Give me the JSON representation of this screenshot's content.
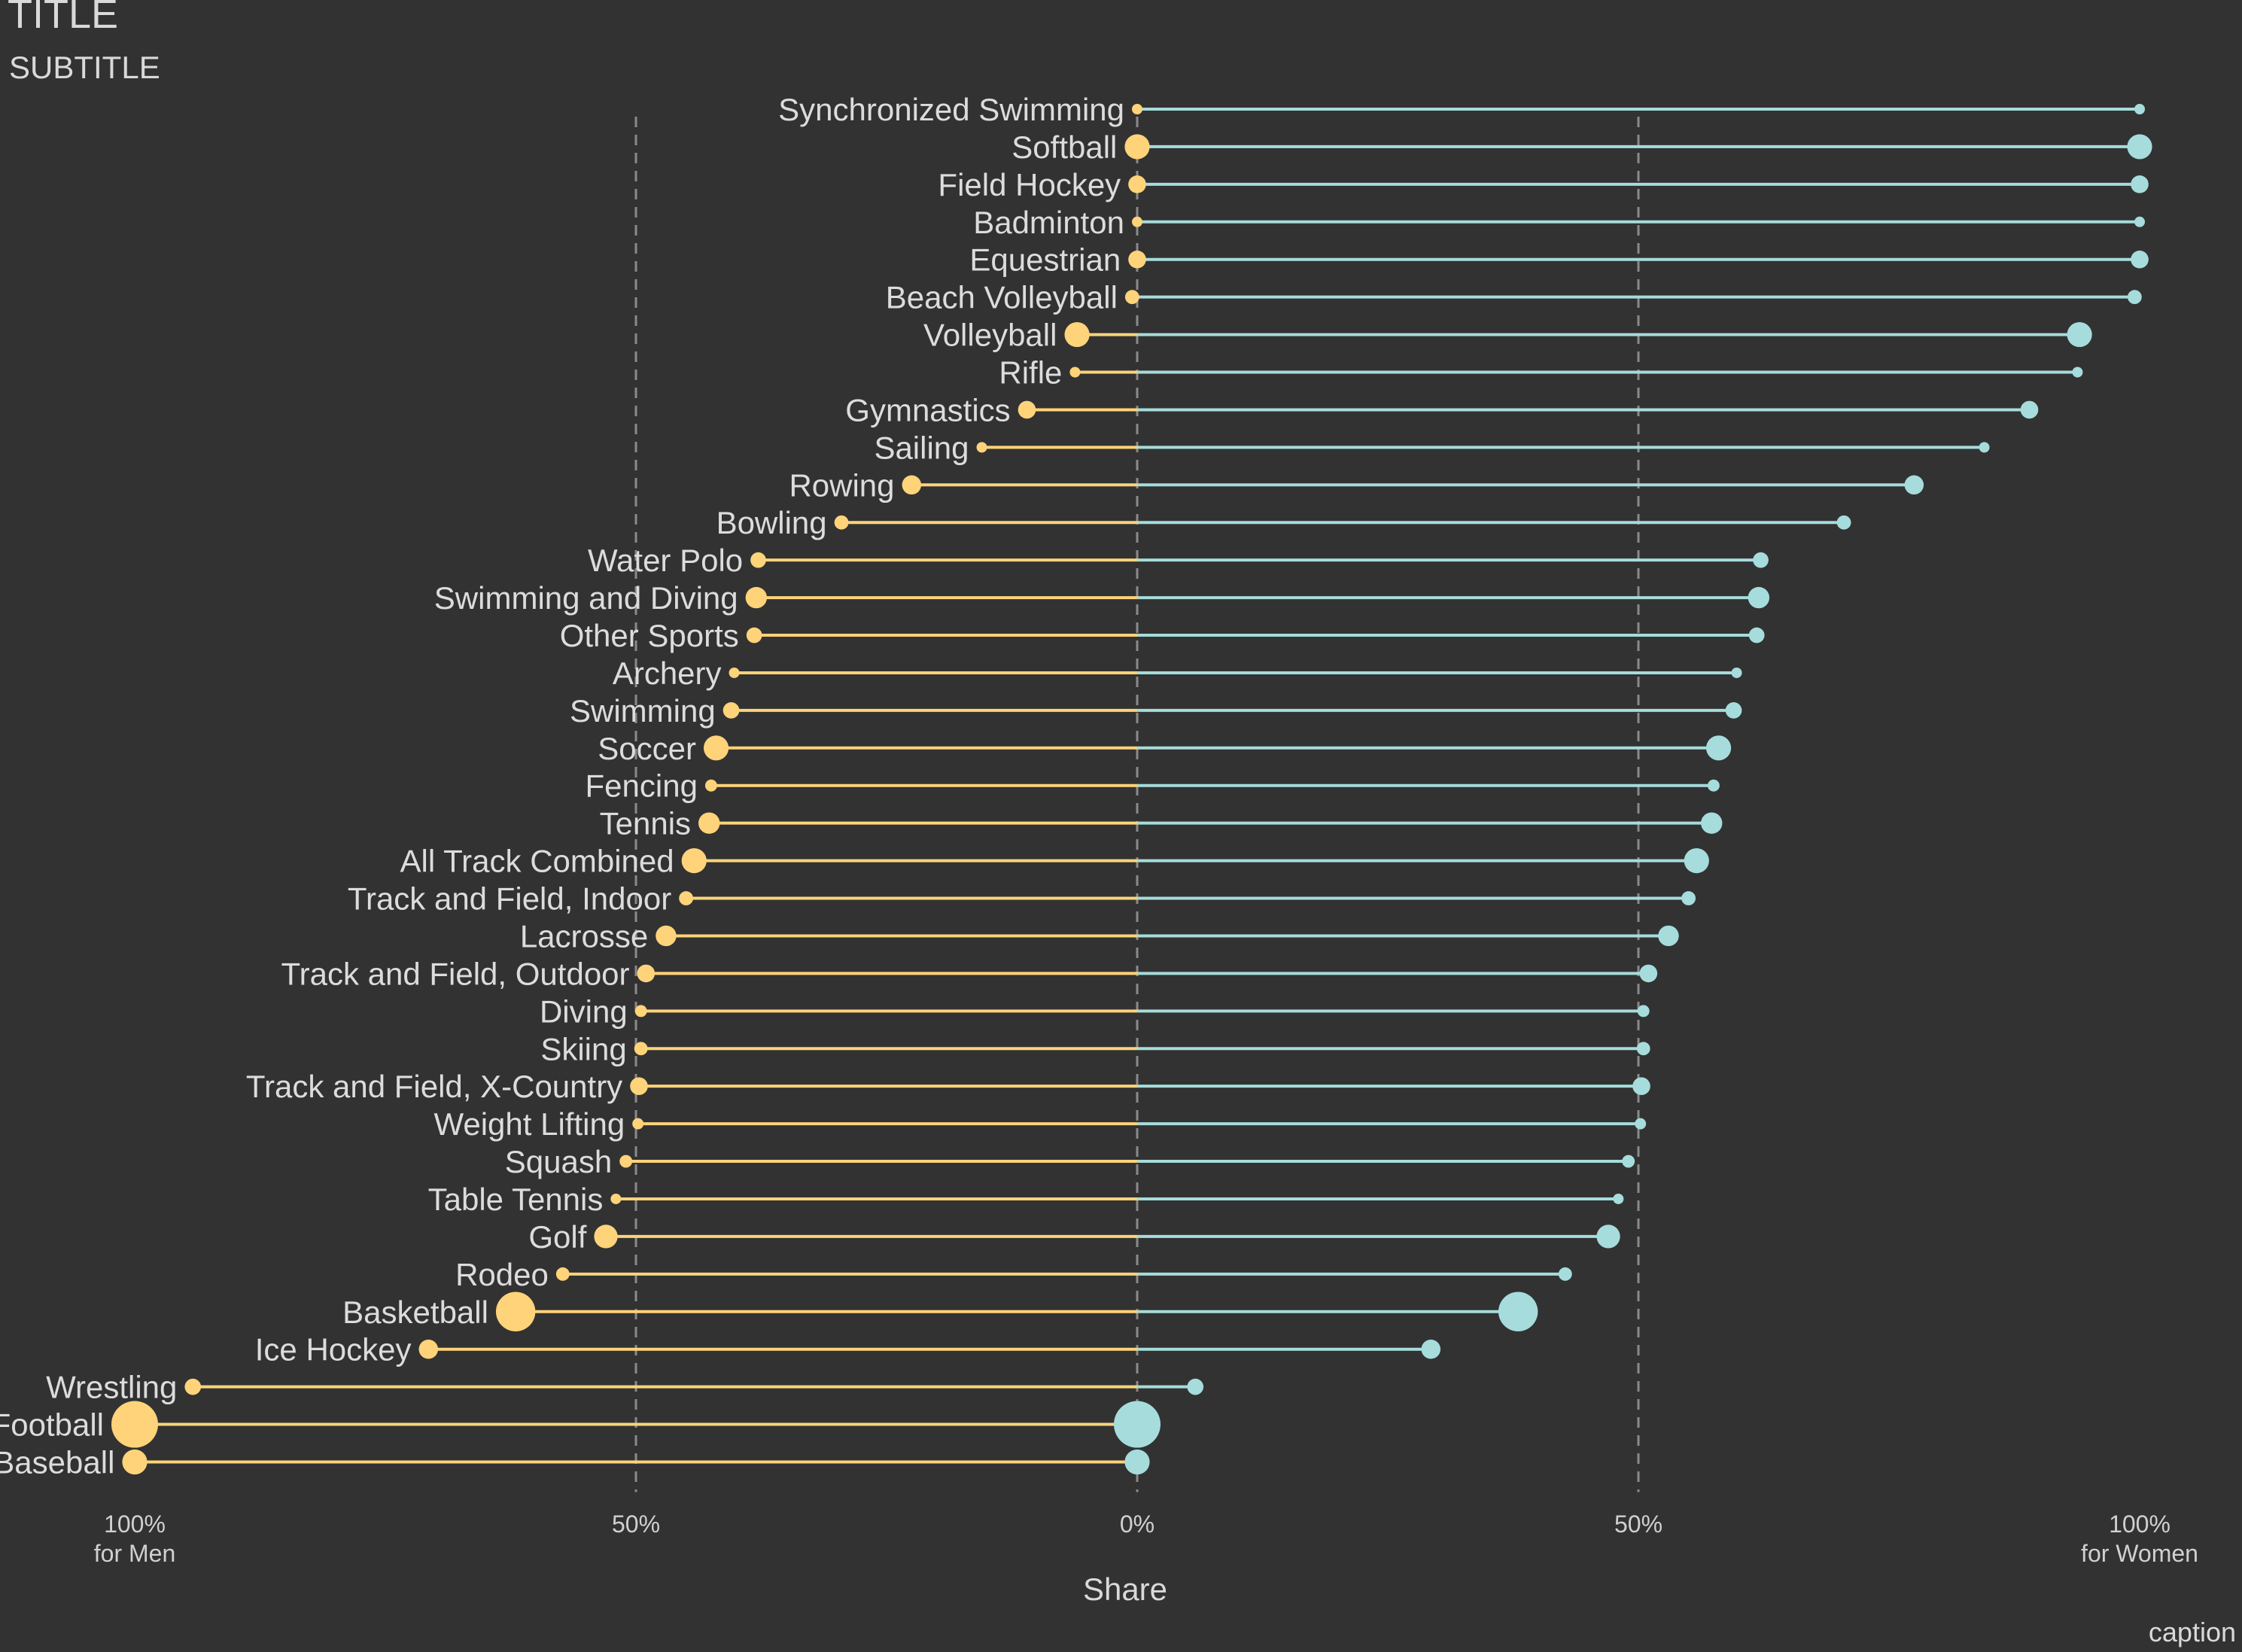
{
  "title": "TITLE",
  "subtitle": "SUBTITLE",
  "caption": "caption",
  "colors": {
    "background": "#323232",
    "men": "#FFD37A",
    "women": "#A6DCDC",
    "grid": "#8a8a8a",
    "text": "#d9d9d9"
  },
  "chart_data": {
    "type": "lollipop (diverging dot plot)",
    "xlabel": "Share",
    "x_ticks": [
      {
        "value": -100,
        "line1": "100%",
        "line2": "for Men"
      },
      {
        "value": -50,
        "line1": "50%",
        "line2": ""
      },
      {
        "value": 0,
        "line1": "0%",
        "line2": ""
      },
      {
        "value": 50,
        "line1": "50%",
        "line2": ""
      },
      {
        "value": 100,
        "line1": "100%",
        "line2": "for Women"
      }
    ],
    "xlim": [
      -100,
      100
    ],
    "grid": "dashed vertical lines at -50%, 0%, 50%",
    "series": [
      {
        "name": "Men",
        "color": "#FFD37A"
      },
      {
        "name": "Women",
        "color": "#A6DCDC"
      }
    ],
    "categories": [
      {
        "sport": "Synchronized Swimming",
        "men": 0,
        "women": 100,
        "men_size": 1,
        "women_size": 1
      },
      {
        "sport": "Softball",
        "men": 0,
        "women": 100,
        "men_size": 3,
        "women_size": 3
      },
      {
        "sport": "Field Hockey",
        "men": 0,
        "women": 100,
        "men_size": 2,
        "women_size": 2
      },
      {
        "sport": "Badminton",
        "men": 0,
        "women": 100,
        "men_size": 1,
        "women_size": 1
      },
      {
        "sport": "Equestrian",
        "men": 0,
        "women": 100,
        "men_size": 2,
        "women_size": 2
      },
      {
        "sport": "Beach Volleyball",
        "men": 0.5,
        "women": 99.5,
        "men_size": 1.5,
        "women_size": 1.5
      },
      {
        "sport": "Volleyball",
        "men": 6,
        "women": 94,
        "men_size": 3,
        "women_size": 3
      },
      {
        "sport": "Rifle",
        "men": 6.2,
        "women": 93.8,
        "men_size": 1,
        "women_size": 1
      },
      {
        "sport": "Gymnastics",
        "men": 11,
        "women": 89,
        "men_size": 2,
        "women_size": 2
      },
      {
        "sport": "Sailing",
        "men": 15.5,
        "women": 84.5,
        "men_size": 1,
        "women_size": 1
      },
      {
        "sport": "Rowing",
        "men": 22.5,
        "women": 77.5,
        "men_size": 2.2,
        "women_size": 2.2
      },
      {
        "sport": "Bowling",
        "men": 29.5,
        "women": 70.5,
        "men_size": 1.5,
        "women_size": 1.5
      },
      {
        "sport": "Water Polo",
        "men": 37.8,
        "women": 62.2,
        "men_size": 1.7,
        "women_size": 1.7
      },
      {
        "sport": "Swimming and Diving",
        "men": 38,
        "women": 62,
        "men_size": 2.5,
        "women_size": 2.5
      },
      {
        "sport": "Other Sports",
        "men": 38.2,
        "women": 61.8,
        "men_size": 1.7,
        "women_size": 1.7
      },
      {
        "sport": "Archery",
        "men": 40.2,
        "women": 59.8,
        "men_size": 1,
        "women_size": 1
      },
      {
        "sport": "Swimming",
        "men": 40.5,
        "women": 59.5,
        "men_size": 1.8,
        "women_size": 1.8
      },
      {
        "sport": "Soccer",
        "men": 42,
        "women": 58,
        "men_size": 3,
        "women_size": 3
      },
      {
        "sport": "Fencing",
        "men": 42.5,
        "women": 57.5,
        "men_size": 1.2,
        "women_size": 1.2
      },
      {
        "sport": "Tennis",
        "men": 42.7,
        "women": 57.3,
        "men_size": 2.5,
        "women_size": 2.5
      },
      {
        "sport": "All Track Combined",
        "men": 44.2,
        "women": 55.8,
        "men_size": 3,
        "women_size": 3
      },
      {
        "sport": "Track and Field, Indoor",
        "men": 45,
        "women": 55,
        "men_size": 1.5,
        "women_size": 1.5
      },
      {
        "sport": "Lacrosse",
        "men": 47,
        "women": 53,
        "men_size": 2.4,
        "women_size": 2.4
      },
      {
        "sport": "Track and Field, Outdoor",
        "men": 49,
        "women": 51,
        "men_size": 2,
        "women_size": 2
      },
      {
        "sport": "Diving",
        "men": 49.5,
        "women": 50.5,
        "men_size": 1.2,
        "women_size": 1.2
      },
      {
        "sport": "Skiing",
        "men": 49.5,
        "women": 50.5,
        "men_size": 1.4,
        "women_size": 1.4
      },
      {
        "sport": "Track and Field, X-Country",
        "men": 49.7,
        "women": 50.3,
        "men_size": 2,
        "women_size": 2
      },
      {
        "sport": "Weight Lifting",
        "men": 49.8,
        "women": 50.2,
        "men_size": 1.1,
        "women_size": 1.1
      },
      {
        "sport": "Squash",
        "men": 51,
        "women": 49,
        "men_size": 1.3,
        "women_size": 1.3
      },
      {
        "sport": "Table Tennis",
        "men": 52,
        "women": 48,
        "men_size": 1,
        "women_size": 1
      },
      {
        "sport": "Golf",
        "men": 53,
        "women": 47,
        "men_size": 2.8,
        "women_size": 2.8
      },
      {
        "sport": "Rodeo",
        "men": 57.3,
        "women": 42.7,
        "men_size": 1.4,
        "women_size": 1.4
      },
      {
        "sport": "Basketball",
        "men": 62,
        "women": 38,
        "men_size": 5,
        "women_size": 5
      },
      {
        "sport": "Ice Hockey",
        "men": 70.7,
        "women": 29.3,
        "men_size": 2.2,
        "women_size": 2.2
      },
      {
        "sport": "Wrestling",
        "men": 94.2,
        "women": 5.8,
        "men_size": 1.8,
        "women_size": 1.8
      },
      {
        "sport": "Football",
        "men": 100,
        "women": 0,
        "men_size": 6,
        "women_size": 6
      },
      {
        "sport": "Baseball",
        "men": 100,
        "women": 0,
        "men_size": 3,
        "women_size": 3
      }
    ]
  }
}
